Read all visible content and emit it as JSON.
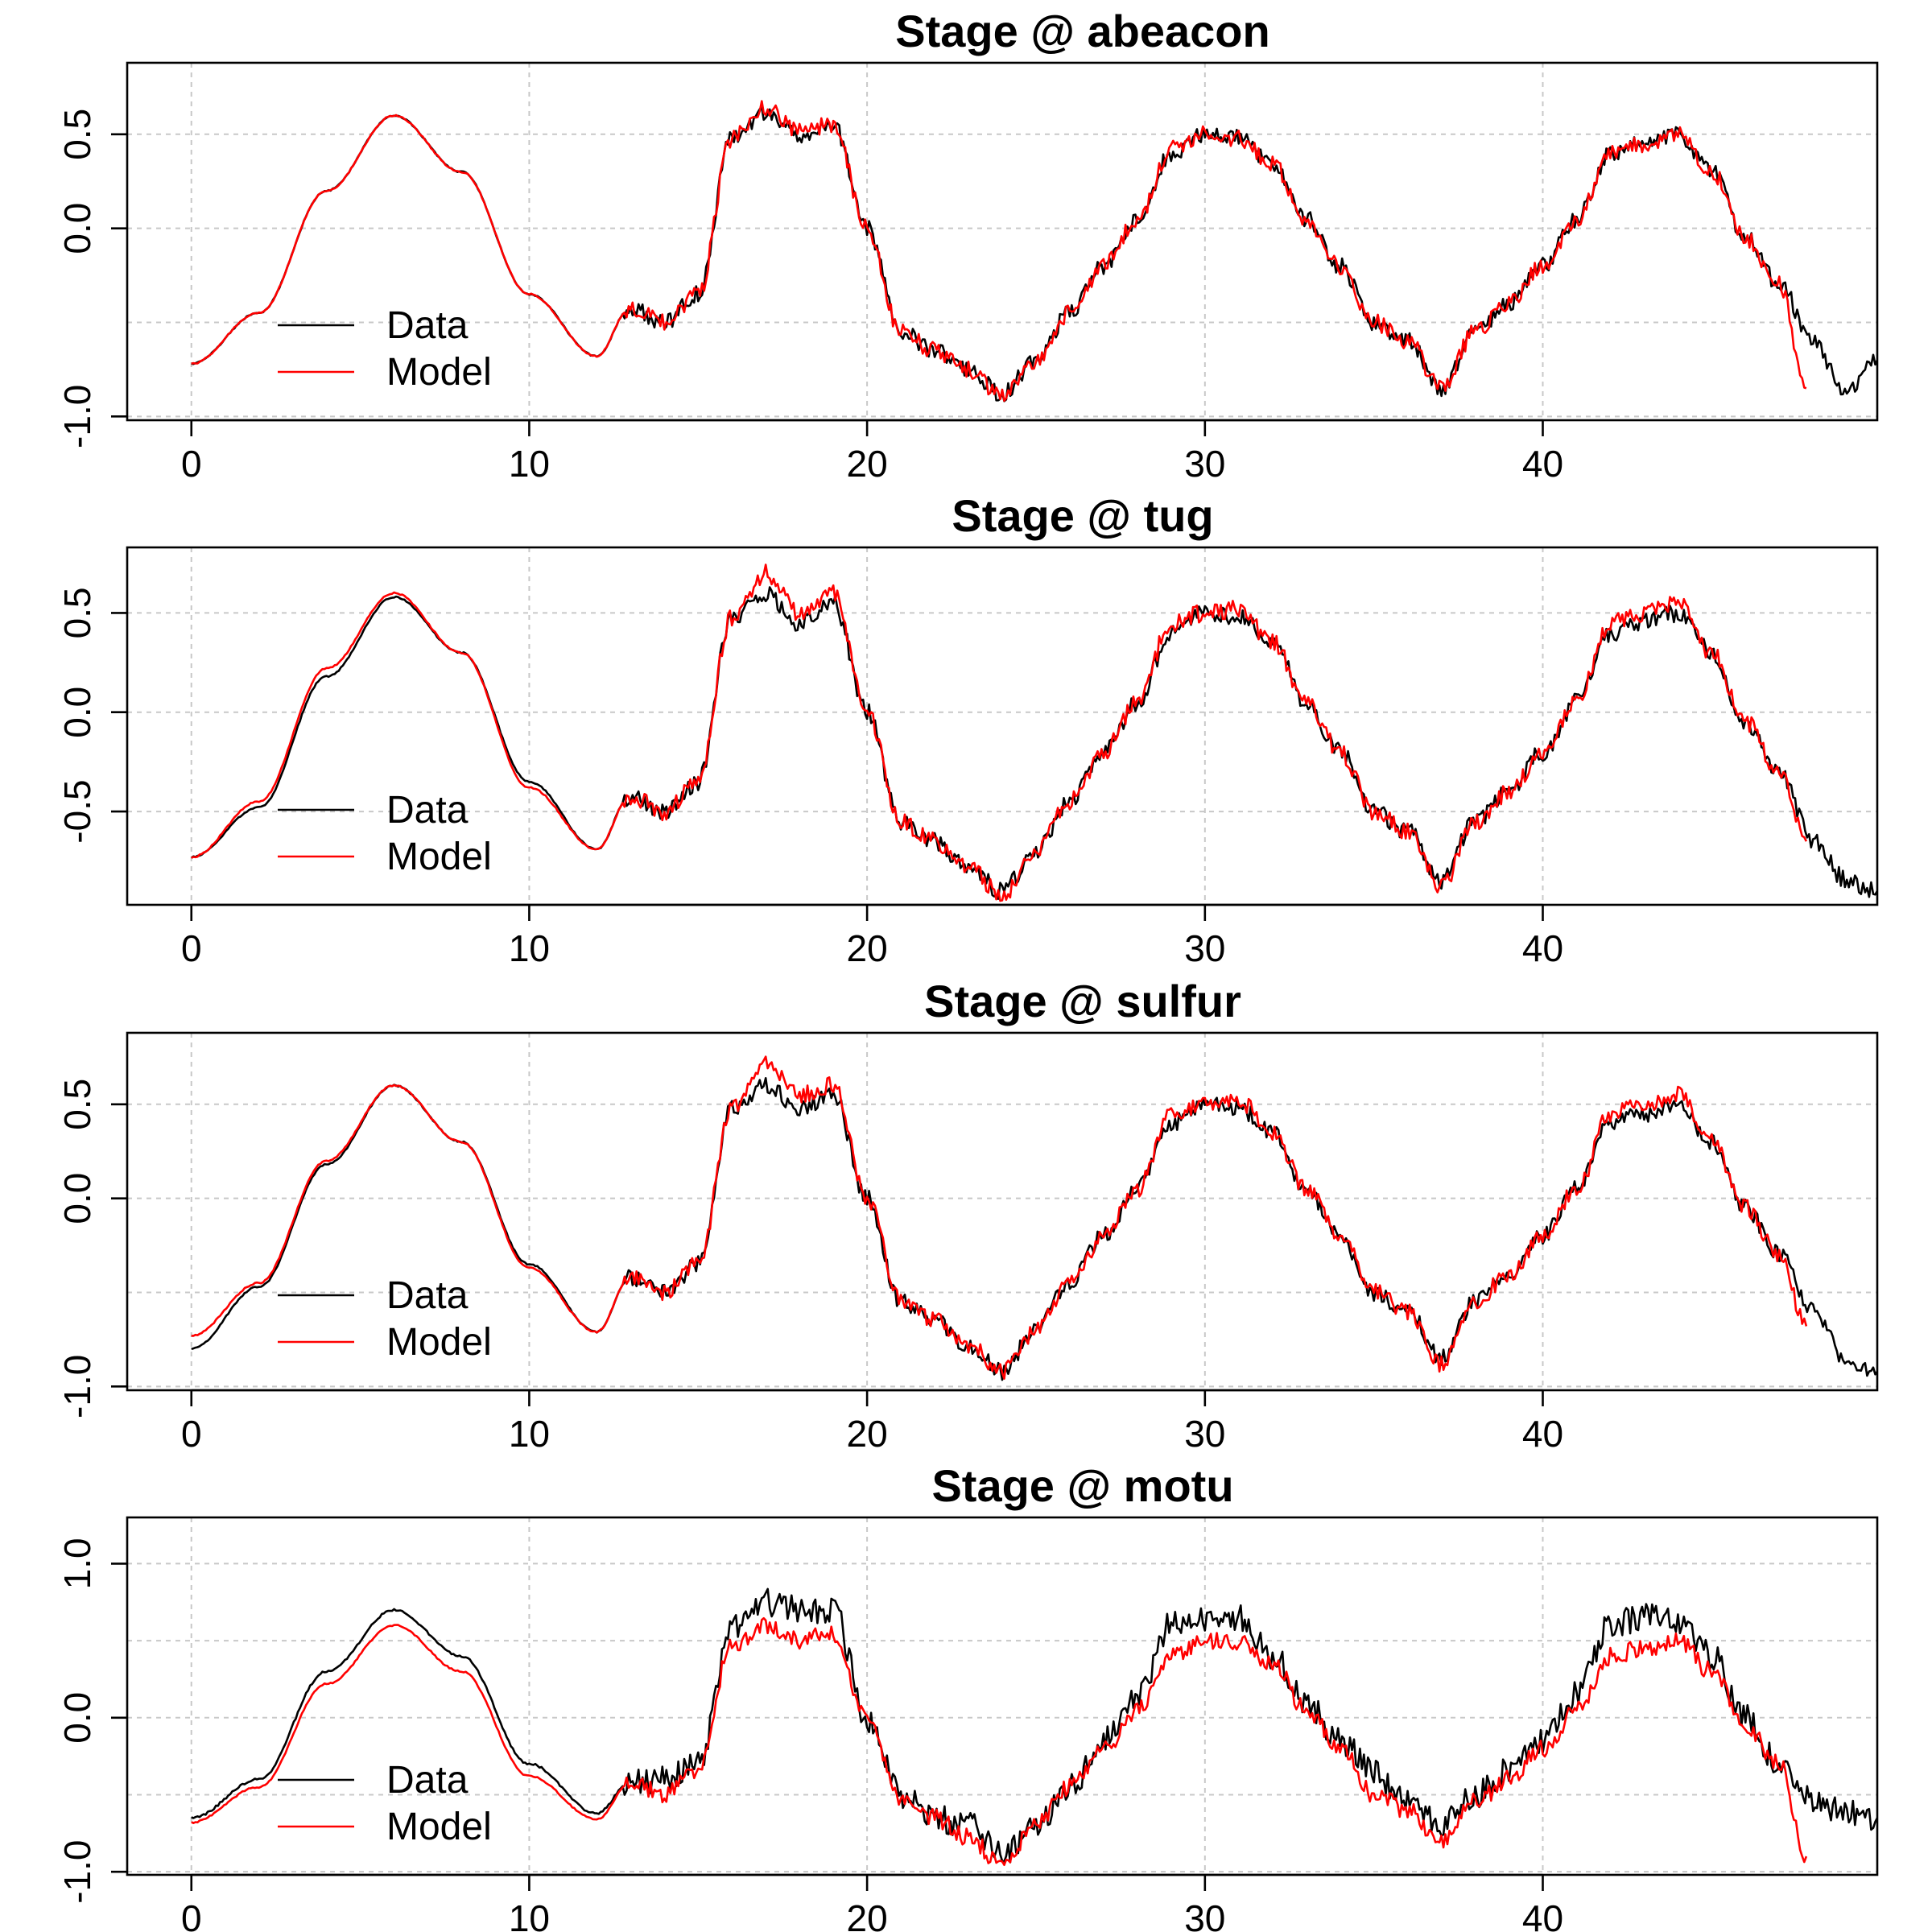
{
  "colors": {
    "data": "#000000",
    "model": "#ff0000",
    "grid": "#c8c8c8",
    "frame": "#000000",
    "background": "#ffffff"
  },
  "legend": {
    "placement": "bottom-left",
    "entries": [
      "Data",
      "Model"
    ]
  },
  "chart_data": [
    {
      "type": "line",
      "title": "Stage @ abeacon",
      "xlabel": "",
      "ylabel": "",
      "xlim": [
        -1.9,
        49.9
      ],
      "ylim": [
        -1.02,
        0.88
      ],
      "xticks": [
        "0",
        "10",
        "20",
        "30",
        "40"
      ],
      "yticks": [
        "-1.0",
        "0.0",
        "0.5"
      ],
      "grid": true,
      "legend": [
        "Data",
        "Model"
      ],
      "series": [
        {
          "name": "Data",
          "x": [
            0,
            2,
            4,
            6,
            8,
            10,
            12,
            13,
            14,
            15,
            16,
            17,
            18,
            19,
            20,
            21,
            22,
            23,
            24,
            25,
            26,
            27,
            28,
            29,
            30,
            31,
            32,
            33,
            34,
            35,
            36,
            37,
            38,
            39,
            40,
            41,
            42,
            43,
            44,
            45,
            46,
            47,
            48,
            49,
            49.9
          ],
          "y": [
            -0.72,
            -0.45,
            0.2,
            0.6,
            0.3,
            -0.35,
            -0.68,
            -0.42,
            -0.5,
            -0.35,
            0.48,
            0.62,
            0.5,
            0.55,
            0.0,
            -0.55,
            -0.65,
            -0.75,
            -0.88,
            -0.7,
            -0.45,
            -0.2,
            0.05,
            0.4,
            0.5,
            0.48,
            0.35,
            0.05,
            -0.2,
            -0.5,
            -0.6,
            -0.85,
            -0.55,
            -0.4,
            -0.2,
            0.05,
            0.4,
            0.45,
            0.5,
            0.3,
            -0.05,
            -0.3,
            -0.6,
            -0.88,
            -0.7
          ]
        },
        {
          "name": "Model",
          "x": [
            0,
            2,
            4,
            6,
            8,
            10,
            12,
            13,
            14,
            15,
            16,
            17,
            18,
            19,
            20,
            21,
            22,
            23,
            24,
            25,
            26,
            27,
            28,
            29,
            30,
            31,
            32,
            33,
            34,
            35,
            36,
            37,
            38,
            39,
            40,
            41,
            42,
            43,
            44,
            45,
            46,
            47,
            47.8
          ],
          "y": [
            -0.72,
            -0.45,
            0.2,
            0.6,
            0.3,
            -0.35,
            -0.68,
            -0.42,
            -0.5,
            -0.35,
            0.48,
            0.64,
            0.52,
            0.55,
            0.0,
            -0.55,
            -0.65,
            -0.75,
            -0.9,
            -0.7,
            -0.45,
            -0.2,
            0.05,
            0.42,
            0.5,
            0.48,
            0.35,
            0.05,
            -0.2,
            -0.5,
            -0.6,
            -0.85,
            -0.55,
            -0.4,
            -0.2,
            0.05,
            0.4,
            0.45,
            0.5,
            0.3,
            -0.05,
            -0.3,
            -0.85
          ]
        }
      ]
    },
    {
      "type": "line",
      "title": "Stage @ tug",
      "xlabel": "",
      "ylabel": "",
      "xlim": [
        -1.9,
        49.9
      ],
      "ylim": [
        -0.97,
        0.83
      ],
      "xticks": [
        "0",
        "10",
        "20",
        "30",
        "40"
      ],
      "yticks": [
        "-0.5",
        "0.0",
        "0.5"
      ],
      "grid": true,
      "legend": [
        "Data",
        "Model"
      ],
      "series": [
        {
          "name": "Data",
          "x": [
            0,
            2,
            4,
            6,
            8,
            10,
            12,
            13,
            14,
            15,
            16,
            17,
            18,
            19,
            20,
            21,
            22,
            23,
            24,
            25,
            26,
            27,
            28,
            29,
            30,
            31,
            32,
            33,
            34,
            35,
            36,
            37,
            38,
            39,
            40,
            41,
            42,
            43,
            44,
            45,
            46,
            47,
            48,
            49,
            49.9
          ],
          "y": [
            -0.73,
            -0.48,
            0.18,
            0.58,
            0.3,
            -0.35,
            -0.69,
            -0.42,
            -0.5,
            -0.35,
            0.48,
            0.6,
            0.45,
            0.55,
            0.0,
            -0.55,
            -0.65,
            -0.78,
            -0.9,
            -0.7,
            -0.45,
            -0.2,
            0.05,
            0.4,
            0.5,
            0.48,
            0.35,
            0.05,
            -0.2,
            -0.5,
            -0.6,
            -0.85,
            -0.55,
            -0.4,
            -0.2,
            0.05,
            0.4,
            0.45,
            0.5,
            0.3,
            -0.05,
            -0.3,
            -0.65,
            -0.85,
            -0.9
          ]
        },
        {
          "name": "Model",
          "x": [
            0,
            2,
            4,
            6,
            8,
            10,
            12,
            13,
            14,
            15,
            16,
            17,
            18,
            19,
            20,
            21,
            22,
            23,
            24,
            25,
            26,
            27,
            28,
            29,
            30,
            31,
            32,
            33,
            34,
            35,
            36,
            37,
            38,
            39,
            40,
            41,
            42,
            43,
            44,
            45,
            46,
            47,
            47.8
          ],
          "y": [
            -0.73,
            -0.45,
            0.22,
            0.6,
            0.3,
            -0.38,
            -0.69,
            -0.42,
            -0.5,
            -0.35,
            0.48,
            0.7,
            0.5,
            0.6,
            0.0,
            -0.55,
            -0.65,
            -0.78,
            -0.92,
            -0.7,
            -0.45,
            -0.2,
            0.05,
            0.45,
            0.5,
            0.52,
            0.35,
            0.05,
            -0.2,
            -0.5,
            -0.6,
            -0.88,
            -0.55,
            -0.4,
            -0.2,
            0.05,
            0.45,
            0.5,
            0.55,
            0.3,
            -0.05,
            -0.3,
            -0.65
          ]
        }
      ]
    },
    {
      "type": "line",
      "title": "Stage @ sulfur",
      "xlabel": "",
      "ylabel": "",
      "xlim": [
        -1.9,
        49.9
      ],
      "ylim": [
        -1.02,
        0.88
      ],
      "xticks": [
        "0",
        "10",
        "20",
        "30",
        "40"
      ],
      "yticks": [
        "-1.0",
        "0.0",
        "0.5"
      ],
      "grid": true,
      "legend": [
        "Data",
        "Model"
      ],
      "series": [
        {
          "name": "Data",
          "x": [
            0,
            2,
            4,
            6,
            8,
            10,
            12,
            13,
            14,
            15,
            16,
            17,
            18,
            19,
            20,
            21,
            22,
            23,
            24,
            25,
            26,
            27,
            28,
            29,
            30,
            31,
            32,
            33,
            34,
            35,
            36,
            37,
            38,
            39,
            40,
            41,
            42,
            43,
            44,
            45,
            46,
            47,
            48,
            49,
            49.9
          ],
          "y": [
            -0.8,
            -0.47,
            0.18,
            0.6,
            0.3,
            -0.35,
            -0.71,
            -0.42,
            -0.5,
            -0.35,
            0.48,
            0.6,
            0.48,
            0.55,
            0.0,
            -0.55,
            -0.65,
            -0.78,
            -0.92,
            -0.7,
            -0.45,
            -0.2,
            0.05,
            0.4,
            0.5,
            0.48,
            0.35,
            0.05,
            -0.2,
            -0.5,
            -0.6,
            -0.85,
            -0.55,
            -0.4,
            -0.2,
            0.05,
            0.4,
            0.45,
            0.5,
            0.3,
            -0.05,
            -0.3,
            -0.6,
            -0.88,
            -0.92
          ]
        },
        {
          "name": "Model",
          "x": [
            0,
            2,
            4,
            6,
            8,
            10,
            12,
            13,
            14,
            15,
            16,
            17,
            18,
            19,
            20,
            21,
            22,
            23,
            24,
            25,
            26,
            27,
            28,
            29,
            30,
            31,
            32,
            33,
            34,
            35,
            36,
            37,
            38,
            39,
            40,
            41,
            42,
            43,
            44,
            45,
            46,
            47,
            47.8
          ],
          "y": [
            -0.73,
            -0.45,
            0.2,
            0.6,
            0.3,
            -0.37,
            -0.71,
            -0.42,
            -0.5,
            -0.35,
            0.48,
            0.72,
            0.55,
            0.6,
            0.0,
            -0.55,
            -0.65,
            -0.78,
            -0.92,
            -0.7,
            -0.45,
            -0.2,
            0.05,
            0.45,
            0.5,
            0.52,
            0.35,
            0.05,
            -0.2,
            -0.5,
            -0.6,
            -0.88,
            -0.55,
            -0.4,
            -0.2,
            0.05,
            0.45,
            0.5,
            0.55,
            0.3,
            -0.05,
            -0.3,
            -0.68
          ]
        }
      ]
    },
    {
      "type": "line",
      "title": "Stage @ motu",
      "xlabel": "",
      "ylabel": "",
      "xlim": [
        -1.9,
        49.9
      ],
      "ylim": [
        -1.02,
        1.3
      ],
      "xticks": [
        "0",
        "10",
        "20",
        "30",
        "40"
      ],
      "yticks": [
        "-1.0",
        "0.0",
        "1.0"
      ],
      "grid": true,
      "legend": [
        "Data",
        "Model"
      ],
      "series": [
        {
          "name": "Data",
          "x": [
            0,
            2,
            4,
            6,
            8,
            10,
            12,
            13,
            14,
            15,
            16,
            17,
            18,
            19,
            20,
            21,
            22,
            23,
            24,
            25,
            26,
            27,
            28,
            29,
            30,
            31,
            32,
            33,
            34,
            35,
            36,
            37,
            38,
            39,
            40,
            41,
            42,
            43,
            44,
            45,
            46,
            47,
            48,
            49,
            49.9
          ],
          "y": [
            -0.65,
            -0.4,
            0.3,
            0.7,
            0.4,
            -0.3,
            -0.62,
            -0.42,
            -0.4,
            -0.3,
            0.6,
            0.75,
            0.7,
            0.7,
            0.0,
            -0.5,
            -0.65,
            -0.7,
            -0.88,
            -0.72,
            -0.45,
            -0.15,
            0.15,
            0.6,
            0.65,
            0.65,
            0.4,
            0.1,
            -0.15,
            -0.35,
            -0.55,
            -0.7,
            -0.5,
            -0.35,
            -0.15,
            0.15,
            0.6,
            0.65,
            0.62,
            0.4,
            0.0,
            -0.3,
            -0.55,
            -0.62,
            -0.65
          ]
        },
        {
          "name": "Model",
          "x": [
            0,
            2,
            4,
            6,
            8,
            10,
            12,
            13,
            14,
            15,
            16,
            17,
            18,
            19,
            20,
            21,
            22,
            23,
            24,
            25,
            26,
            27,
            28,
            29,
            30,
            31,
            32,
            33,
            34,
            35,
            36,
            37,
            38,
            39,
            40,
            41,
            42,
            43,
            44,
            45,
            46,
            47,
            47.8
          ],
          "y": [
            -0.68,
            -0.45,
            0.22,
            0.6,
            0.3,
            -0.38,
            -0.66,
            -0.42,
            -0.5,
            -0.35,
            0.48,
            0.6,
            0.5,
            0.55,
            0.0,
            -0.55,
            -0.65,
            -0.78,
            -0.95,
            -0.7,
            -0.45,
            -0.2,
            0.05,
            0.4,
            0.5,
            0.48,
            0.35,
            0.05,
            -0.2,
            -0.5,
            -0.6,
            -0.82,
            -0.55,
            -0.4,
            -0.2,
            0.05,
            0.4,
            0.45,
            0.5,
            0.3,
            -0.05,
            -0.3,
            -0.9
          ]
        }
      ]
    }
  ]
}
